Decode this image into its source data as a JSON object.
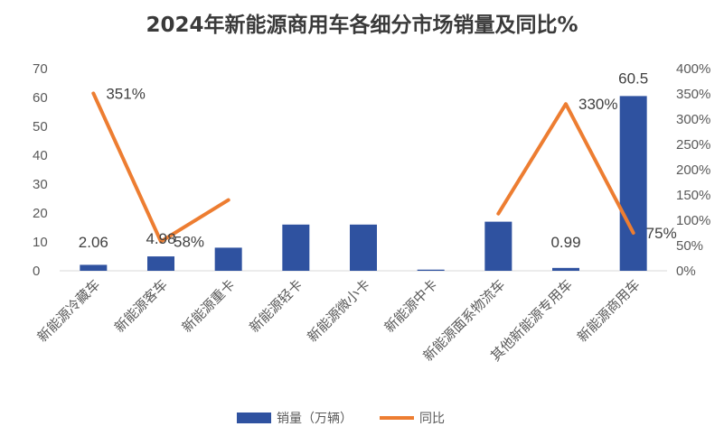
{
  "title": "2024年新能源商用车各细分市场销量及同比%",
  "colors": {
    "bar": "#2f52a0",
    "line": "#ed7d31"
  },
  "chart_data": {
    "type": "bar",
    "title": "2024年新能源商用车各细分市场销量及同比%",
    "categories": [
      "新能源冷藏车",
      "新能源客车",
      "新能源重卡",
      "新能源轻卡",
      "新能源微小卡",
      "新能源中卡",
      "新能源面系物流车",
      "其他新能源专用车",
      "新能源商用车"
    ],
    "series": [
      {
        "name": "销量（万辆）",
        "type": "bar",
        "axis": "left",
        "values": [
          2.06,
          4.98,
          8.0,
          16.0,
          16.0,
          0.4,
          17.0,
          0.99,
          60.5
        ],
        "labels": [
          "2.06",
          "4.98",
          "",
          "",
          "",
          "",
          "",
          "0.99",
          "60.5"
        ]
      },
      {
        "name": "同比",
        "type": "line",
        "axis": "right",
        "values": [
          351,
          58,
          140,
          null,
          null,
          null,
          113,
          330,
          75
        ],
        "labels": [
          "351%",
          "58%",
          "",
          "",
          "",
          "",
          "",
          "330%",
          "75%"
        ]
      }
    ],
    "y_left": {
      "min": 0,
      "max": 70,
      "step": 10,
      "ticks": [
        "0",
        "10",
        "20",
        "30",
        "40",
        "50",
        "60",
        "70"
      ]
    },
    "y_right": {
      "min": 0,
      "max": 400,
      "step": 50,
      "ticks": [
        "0%",
        "50%",
        "100%",
        "150%",
        "200%",
        "250%",
        "300%",
        "350%",
        "400%"
      ]
    },
    "legend": {
      "position": "bottom",
      "items": [
        "销量（万辆）",
        "同比"
      ]
    },
    "grid": false
  }
}
